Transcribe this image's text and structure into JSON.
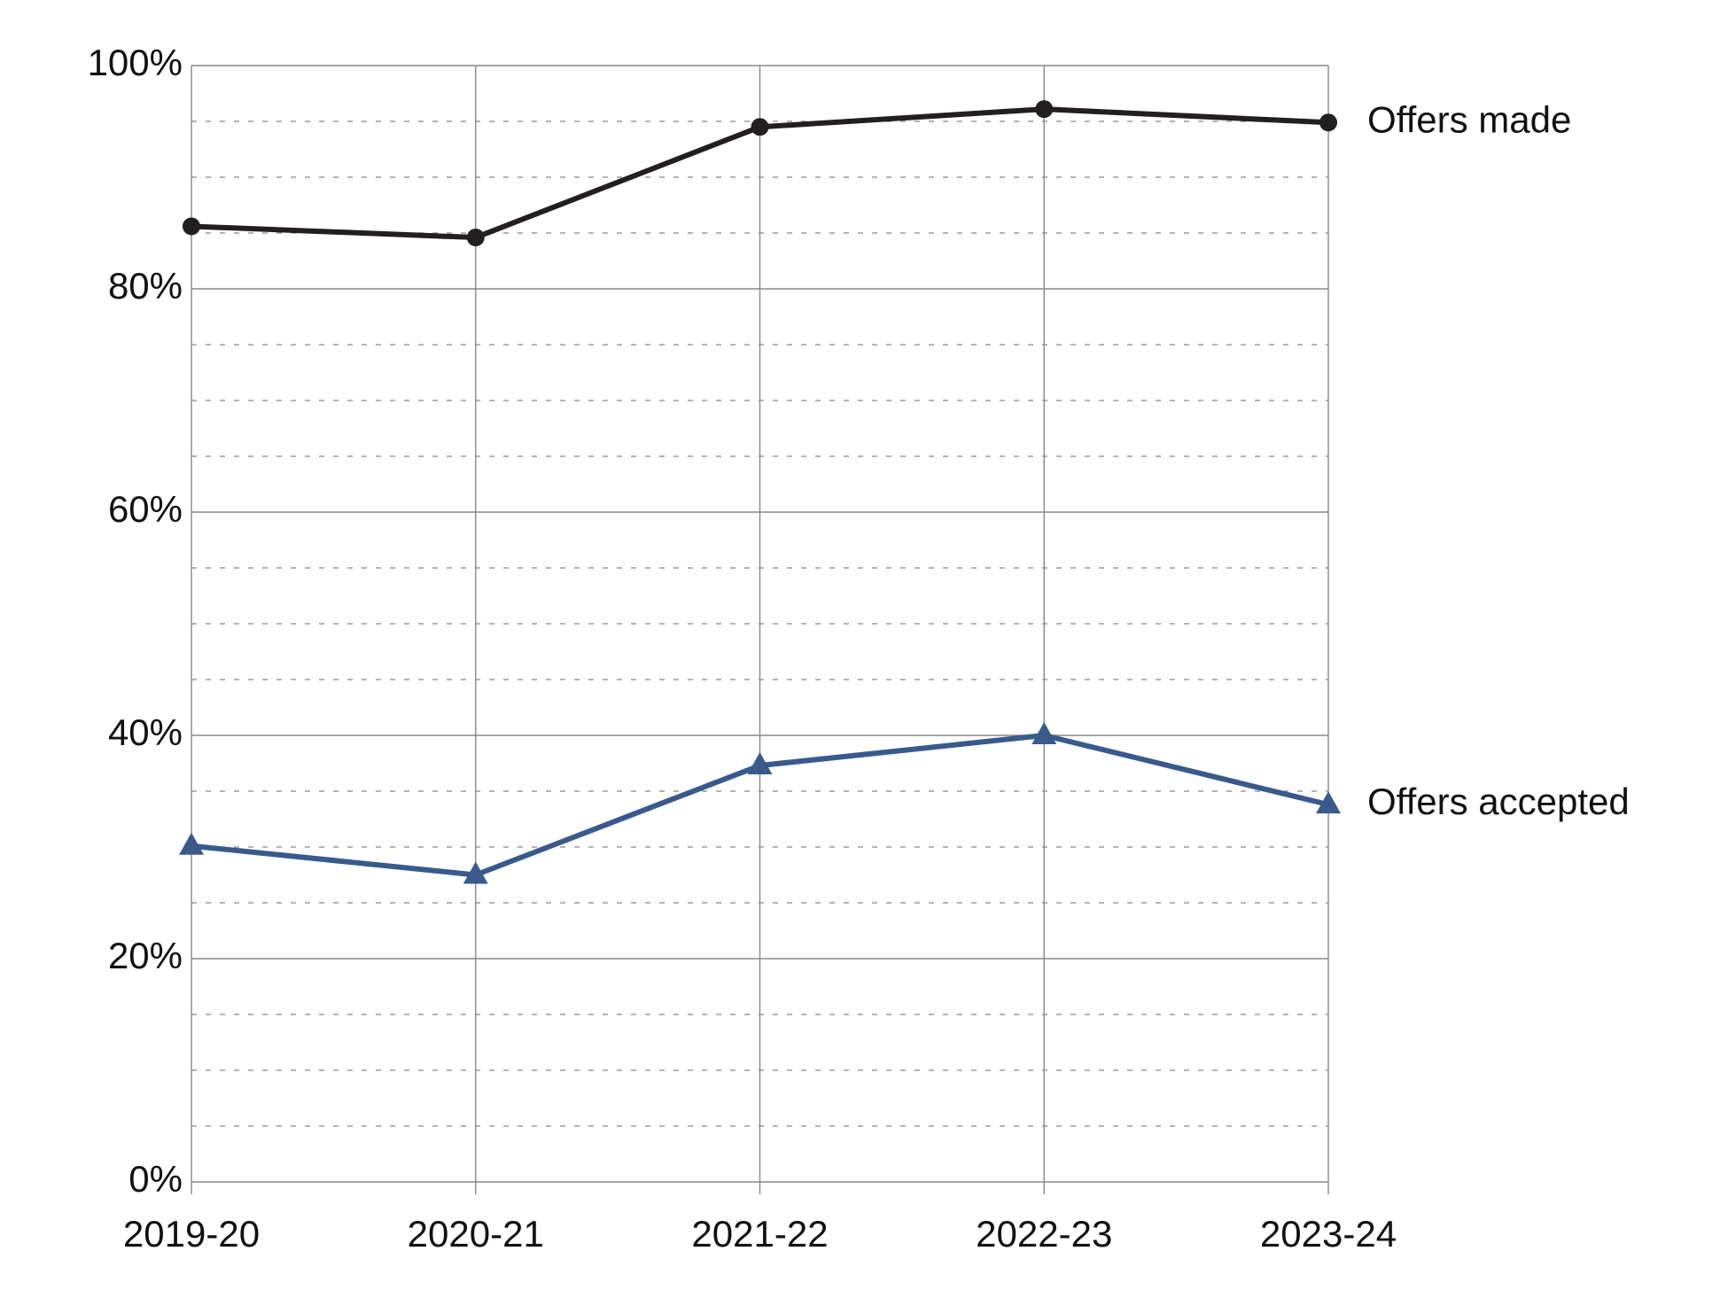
{
  "chart_data": {
    "type": "line",
    "categories": [
      "2019-20",
      "2020-21",
      "2021-22",
      "2022-23",
      "2023-24"
    ],
    "series": [
      {
        "name": "Offers made",
        "color": "#231f20",
        "marker": "circle",
        "values": [
          85.6,
          84.6,
          94.5,
          96.1,
          94.9
        ]
      },
      {
        "name": "Offers accepted",
        "color": "#3a5a8c",
        "marker": "triangle",
        "values": [
          30.1,
          27.5,
          37.3,
          40.0,
          33.8
        ]
      }
    ],
    "ylim": [
      0,
      100
    ],
    "yticks": [
      {
        "value": 0,
        "label": "0%"
      },
      {
        "value": 20,
        "label": "20%"
      },
      {
        "value": 40,
        "label": "40%"
      },
      {
        "value": 60,
        "label": "60%"
      },
      {
        "value": 80,
        "label": "80%"
      },
      {
        "value": 100,
        "label": "100%"
      }
    ],
    "minor_yticks": [
      5,
      10,
      15,
      25,
      30,
      35,
      45,
      50,
      55,
      65,
      70,
      75,
      85,
      90,
      95
    ],
    "grid": true
  }
}
